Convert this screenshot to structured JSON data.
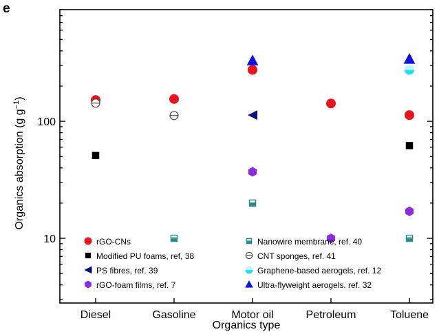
{
  "panel_label": "e",
  "colors": {
    "rGO-CNs": "#e8141b",
    "Modified PU foams": "#000000",
    "PS fibres": "#101080",
    "rGO-foam films": "#8a2be2",
    "Nanowire membrane": "#2a8c8c",
    "CNT sponges": "#444444",
    "Graphene-based aerogels": "#22e0f0",
    "Ultra-flyweight aerogels": "#1010e0"
  },
  "chart_data": {
    "type": "scatter",
    "xlabel": "Organics type",
    "ylabel": "Organics absorption (g g",
    "ylabel_sup": "−1",
    "ylabel_end": ")",
    "yscale": "log",
    "ylim": [
      2.8,
      900
    ],
    "yticks": [
      10,
      100
    ],
    "yticklabels": [
      "10",
      "100"
    ],
    "categories": [
      "Diesel",
      "Gasoline",
      "Motor oil",
      "Petroleum",
      "Toluene"
    ],
    "legend_position": "bottom",
    "series": [
      {
        "name": "rGO-CNs",
        "marker": "circle",
        "values": [
          152,
          155,
          275,
          142,
          113
        ]
      },
      {
        "name": "Modified PU foams, ref, 38",
        "marker": "square",
        "values": [
          51,
          null,
          null,
          null,
          62
        ]
      },
      {
        "name": "PS fibres, ref. 39",
        "marker": "triangle-left",
        "values": [
          null,
          null,
          113,
          null,
          null
        ]
      },
      {
        "name": "rGO-foam films, ref. 7",
        "marker": "hexagon",
        "values": [
          null,
          null,
          37,
          10,
          17
        ]
      },
      {
        "name": "Nanowire membrane, ref. 40",
        "marker": "half-square",
        "values": [
          null,
          10,
          20,
          null,
          10
        ]
      },
      {
        "name": "CNT sponges, ref. 41",
        "marker": "circle-line",
        "values": [
          143,
          112,
          null,
          null,
          null
        ]
      },
      {
        "name": "Graphene-based aerogels, ref. 12",
        "marker": "half-circle",
        "values": [
          null,
          null,
          null,
          null,
          275
        ]
      },
      {
        "name": "Ultra-flyweight aerogels. ref. 32",
        "marker": "triangle-up",
        "values": [
          null,
          null,
          330,
          null,
          340
        ]
      }
    ]
  }
}
